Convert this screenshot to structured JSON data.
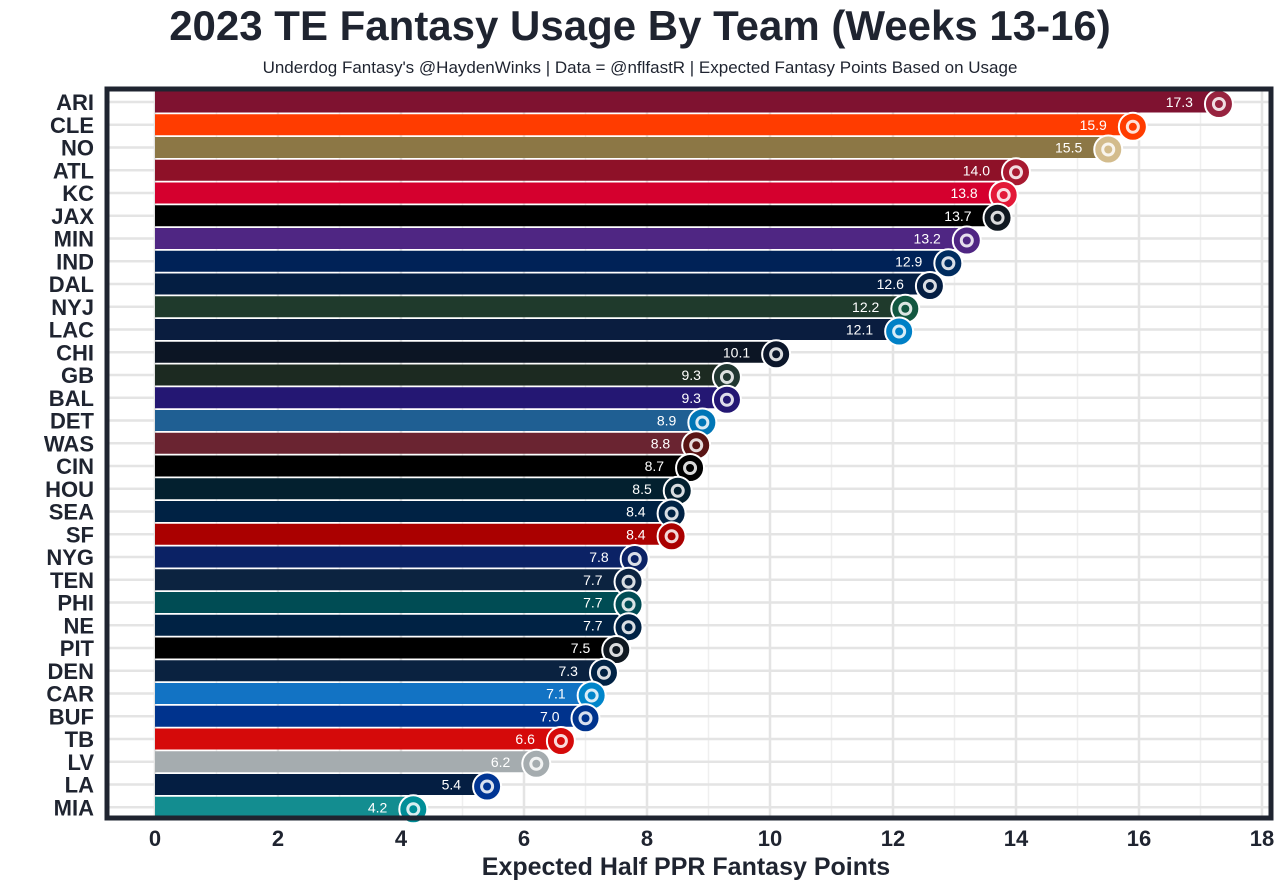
{
  "title": "2023 TE Fantasy Usage By Team (Weeks 13-16)",
  "subtitle": "Underdog Fantasy's @HaydenWinks | Data = @nflfastR | Expected Fantasy Points Based on Usage",
  "chart_data": {
    "type": "bar",
    "orientation": "horizontal",
    "xlabel": "Expected Half PPR Fantasy Points",
    "ylabel": "",
    "xlim": [
      0,
      18
    ],
    "xticks": [
      0,
      2,
      4,
      6,
      8,
      10,
      12,
      14,
      16,
      18
    ],
    "grid": true,
    "categories": [
      "ARI",
      "CLE",
      "NO",
      "ATL",
      "KC",
      "JAX",
      "MIN",
      "IND",
      "DAL",
      "NYJ",
      "LAC",
      "CHI",
      "GB",
      "BAL",
      "DET",
      "WAS",
      "CIN",
      "HOU",
      "SEA",
      "SF",
      "NYG",
      "TEN",
      "PHI",
      "NE",
      "PIT",
      "DEN",
      "CAR",
      "BUF",
      "TB",
      "LV",
      "LA",
      "MIA"
    ],
    "values": [
      17.3,
      15.9,
      15.5,
      14.0,
      13.8,
      13.7,
      13.2,
      12.9,
      12.6,
      12.2,
      12.1,
      10.1,
      9.3,
      9.3,
      8.9,
      8.8,
      8.7,
      8.5,
      8.4,
      8.4,
      7.8,
      7.7,
      7.7,
      7.7,
      7.5,
      7.3,
      7.1,
      7.0,
      6.6,
      6.2,
      5.4,
      4.2
    ],
    "labels": [
      "17.3",
      "15.9",
      "15.5",
      "14.0",
      "13.8",
      "13.7",
      "13.2",
      "12.9",
      "12.6",
      "12.2",
      "12.1",
      "10.1",
      "9.3",
      "9.3",
      "8.9",
      "8.8",
      "8.7",
      "8.5",
      "8.4",
      "8.4",
      "7.8",
      "7.7",
      "7.7",
      "7.7",
      "7.5",
      "7.3",
      "7.1",
      "7.0",
      "6.6",
      "6.2",
      "5.4",
      "4.2"
    ],
    "colors": [
      "#97233F",
      "#FF3C00",
      "#D3BC8D",
      "#A71930",
      "#E31837",
      "#101820",
      "#4F2683",
      "#002C5F",
      "#041E42",
      "#125740",
      "#0080C6",
      "#0B162A",
      "#203731",
      "#241773",
      "#0076B6",
      "#5A1414",
      "#000000",
      "#03202F",
      "#002244",
      "#AA0000",
      "#0B2265",
      "#0C2340",
      "#004C54",
      "#002244",
      "#101820",
      "#002244",
      "#0085CA",
      "#00338D",
      "#D50A0A",
      "#A5ACAF",
      "#003594",
      "#008E97"
    ],
    "bar_colors": [
      "#7f1230",
      "#ff3c00",
      "#8c7745",
      "#8e1128",
      "#d5002e",
      "#000000",
      "#4f2683",
      "#002257",
      "#041e42",
      "#1f3a2c",
      "#0a1d3f",
      "#0c1524",
      "#1c2a21",
      "#241773",
      "#1f5f93",
      "#6a2431",
      "#000000",
      "#03202f",
      "#002244",
      "#aa0000",
      "#0b2265",
      "#0c2340",
      "#004c54",
      "#002244",
      "#000000",
      "#0a2240",
      "#1273c4",
      "#00338d",
      "#d50a0a",
      "#a5acaf",
      "#041e42",
      "#138d90"
    ],
    "logo_names": [
      "cardinals-logo-icon",
      "browns-helmet-icon",
      "saints-fleur-icon",
      "falcons-logo-icon",
      "chiefs-arrowhead-icon",
      "jaguars-logo-icon",
      "vikings-logo-icon",
      "colts-horseshoe-icon",
      "cowboys-star-icon",
      "jets-logo-icon",
      "chargers-bolt-icon",
      "bears-c-icon",
      "packers-g-icon",
      "ravens-logo-icon",
      "lions-logo-icon",
      "commanders-w-icon",
      "bengals-b-icon",
      "texans-logo-icon",
      "seahawks-logo-icon",
      "49ers-logo-icon",
      "giants-ny-icon",
      "titans-logo-icon",
      "eagles-logo-icon",
      "patriots-logo-icon",
      "steelers-logo-icon",
      "broncos-logo-icon",
      "panthers-logo-icon",
      "bills-logo-icon",
      "buccaneers-logo-icon",
      "raiders-shield-icon",
      "rams-horn-icon",
      "dolphins-logo-icon"
    ]
  }
}
